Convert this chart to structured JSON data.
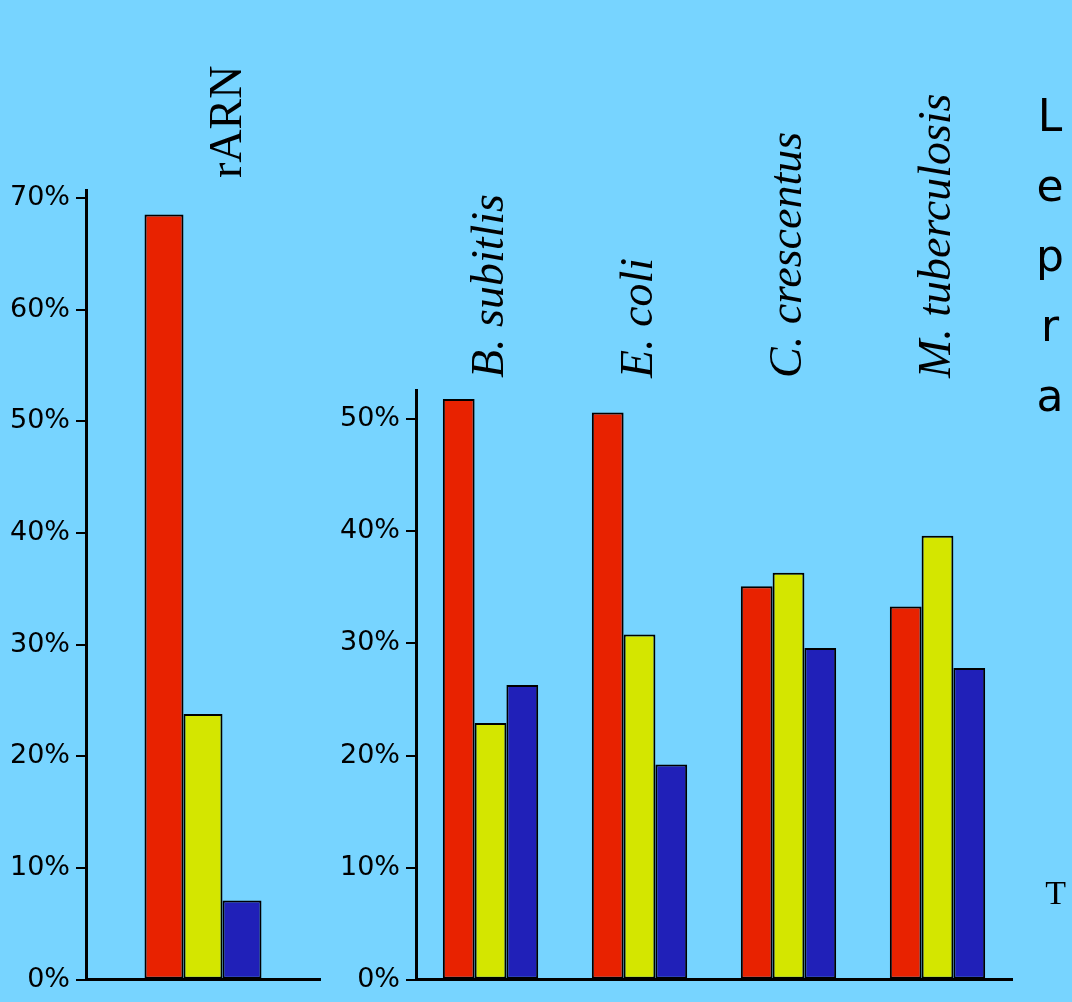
{
  "chart_data": [
    {
      "type": "bar",
      "categories": [
        "rARN"
      ],
      "series": [
        {
          "color": "#e82200",
          "values": [
            68.5
          ]
        },
        {
          "color": "#d4e600",
          "values": [
            23.8
          ]
        },
        {
          "color": "#2020b8",
          "values": [
            7.1
          ]
        }
      ],
      "ylim": [
        0,
        70.7
      ],
      "yticks": [
        {
          "value": 0,
          "label": "0%"
        },
        {
          "value": 10,
          "label": "10%"
        },
        {
          "value": 20,
          "label": "20%"
        },
        {
          "value": 30,
          "label": "30%"
        },
        {
          "value": 40,
          "label": "40%"
        },
        {
          "value": 50,
          "label": "50%"
        },
        {
          "value": 60,
          "label": "60%"
        },
        {
          "value": 70,
          "label": "70%"
        }
      ],
      "grid": false,
      "legend": false
    },
    {
      "type": "bar",
      "categories": [
        "B. subitlis",
        "E. coli",
        "C. crescentus",
        "M. tuberculosis"
      ],
      "series": [
        {
          "color": "#e82200",
          "values": [
            51.8,
            50.6,
            35.1,
            33.3
          ]
        },
        {
          "color": "#d4e600",
          "values": [
            22.9,
            30.8,
            36.3,
            39.6
          ]
        },
        {
          "color": "#2020b8",
          "values": [
            26.3,
            19.2,
            29.6,
            27.8
          ]
        }
      ],
      "ylim": [
        0,
        52.6
      ],
      "yticks": [
        {
          "value": 0,
          "label": "0%"
        },
        {
          "value": 10,
          "label": "10%"
        },
        {
          "value": 20,
          "label": "20%"
        },
        {
          "value": 30,
          "label": "30%"
        },
        {
          "value": 40,
          "label": "40%"
        },
        {
          "value": 50,
          "label": "50%"
        }
      ],
      "grid": false,
      "legend": false,
      "annotations": [
        "Lepra",
        "T"
      ]
    }
  ]
}
